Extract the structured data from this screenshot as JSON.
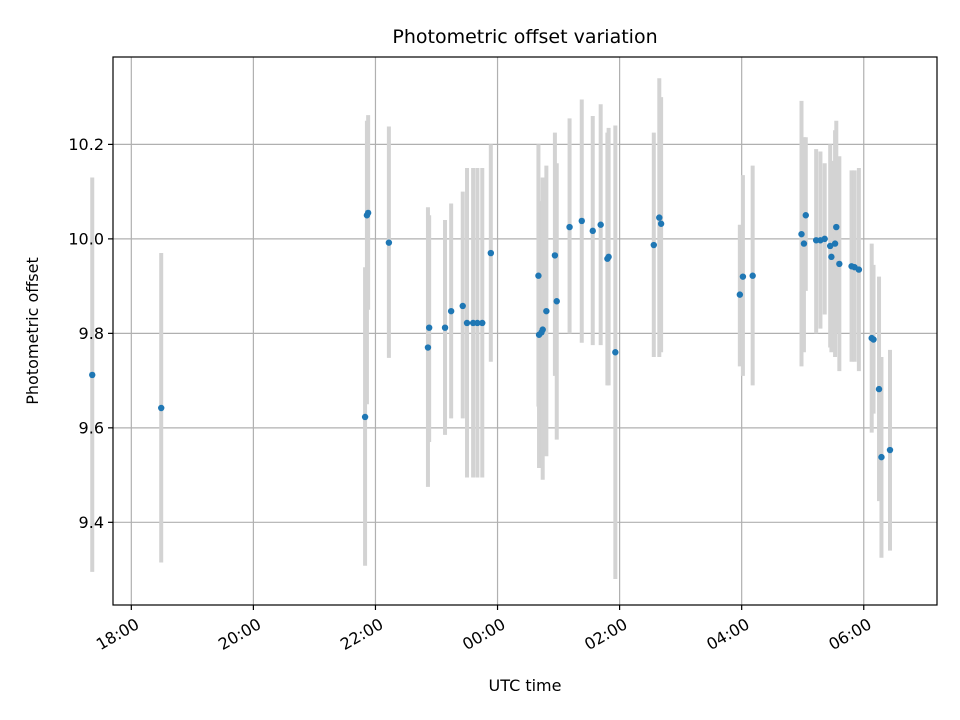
{
  "chart_data": {
    "type": "scatter",
    "title": "Photometric offset variation",
    "xlabel": "UTC time",
    "ylabel": "Photometric offset",
    "xlim": [
      -6.3,
      7.2
    ],
    "ylim": [
      9.225,
      10.385
    ],
    "grid": true,
    "x_ticks": [
      {
        "value": -6,
        "label": "18:00"
      },
      {
        "value": -4,
        "label": "20:00"
      },
      {
        "value": -2,
        "label": "22:00"
      },
      {
        "value": 0,
        "label": "00:00"
      },
      {
        "value": 2,
        "label": "02:00"
      },
      {
        "value": 4,
        "label": "04:00"
      },
      {
        "value": 6,
        "label": "06:00"
      }
    ],
    "y_ticks": [
      {
        "value": 9.4,
        "label": "9.4"
      },
      {
        "value": 9.6,
        "label": "9.6"
      },
      {
        "value": 9.8,
        "label": "9.8"
      },
      {
        "value": 10.0,
        "label": "10.0"
      },
      {
        "value": 10.2,
        "label": "10.2"
      }
    ],
    "colors": {
      "point": "#1f77b4",
      "errorbar": "#d3d3d3",
      "grid": "#b0b0b0",
      "axes": "#000000"
    },
    "points": [
      {
        "x": -6.64,
        "y": 9.712,
        "lo": 9.295,
        "hi": 10.13
      },
      {
        "x": -5.51,
        "y": 9.642,
        "lo": 9.315,
        "hi": 9.97
      },
      {
        "x": -2.17,
        "y": 9.623,
        "lo": 9.308,
        "hi": 9.94
      },
      {
        "x": -2.14,
        "y": 10.05,
        "lo": 9.65,
        "hi": 10.25
      },
      {
        "x": -2.12,
        "y": 10.055,
        "lo": 9.85,
        "hi": 10.262
      },
      {
        "x": -1.78,
        "y": 9.992,
        "lo": 9.748,
        "hi": 10.238
      },
      {
        "x": -1.14,
        "y": 9.77,
        "lo": 9.475,
        "hi": 10.067
      },
      {
        "x": -1.12,
        "y": 9.812,
        "lo": 9.57,
        "hi": 10.05
      },
      {
        "x": -0.86,
        "y": 9.812,
        "lo": 9.585,
        "hi": 10.04
      },
      {
        "x": -0.76,
        "y": 9.847,
        "lo": 9.62,
        "hi": 10.075
      },
      {
        "x": -0.57,
        "y": 9.858,
        "lo": 9.62,
        "hi": 10.1
      },
      {
        "x": -0.5,
        "y": 9.822,
        "lo": 9.495,
        "hi": 10.15
      },
      {
        "x": -0.4,
        "y": 9.822,
        "lo": 9.495,
        "hi": 10.15
      },
      {
        "x": -0.33,
        "y": 9.822,
        "lo": 9.495,
        "hi": 10.15
      },
      {
        "x": -0.25,
        "y": 9.822,
        "lo": 9.495,
        "hi": 10.15
      },
      {
        "x": -0.11,
        "y": 9.97,
        "lo": 9.74,
        "hi": 10.2
      },
      {
        "x": 0.67,
        "y": 9.922,
        "lo": 9.645,
        "hi": 10.2
      },
      {
        "x": 0.68,
        "y": 9.797,
        "lo": 9.515,
        "hi": 10.08
      },
      {
        "x": 0.72,
        "y": 9.802,
        "lo": 9.525,
        "hi": 10.08
      },
      {
        "x": 0.74,
        "y": 9.808,
        "lo": 9.49,
        "hi": 10.13
      },
      {
        "x": 0.8,
        "y": 9.847,
        "lo": 9.54,
        "hi": 10.155
      },
      {
        "x": 0.94,
        "y": 9.965,
        "lo": 9.71,
        "hi": 10.225
      },
      {
        "x": 0.97,
        "y": 9.868,
        "lo": 9.575,
        "hi": 10.16
      },
      {
        "x": 1.18,
        "y": 10.025,
        "lo": 9.8,
        "hi": 10.255
      },
      {
        "x": 1.38,
        "y": 10.038,
        "lo": 9.78,
        "hi": 10.295
      },
      {
        "x": 1.56,
        "y": 10.017,
        "lo": 9.775,
        "hi": 10.26
      },
      {
        "x": 1.69,
        "y": 10.03,
        "lo": 9.775,
        "hi": 10.285
      },
      {
        "x": 1.8,
        "y": 9.958,
        "lo": 9.69,
        "hi": 10.225
      },
      {
        "x": 1.82,
        "y": 9.962,
        "lo": 9.69,
        "hi": 10.235
      },
      {
        "x": 1.93,
        "y": 9.76,
        "lo": 9.28,
        "hi": 10.24
      },
      {
        "x": 2.56,
        "y": 9.987,
        "lo": 9.75,
        "hi": 10.225
      },
      {
        "x": 2.65,
        "y": 10.045,
        "lo": 9.75,
        "hi": 10.34
      },
      {
        "x": 2.68,
        "y": 10.032,
        "lo": 9.76,
        "hi": 10.3
      },
      {
        "x": 3.97,
        "y": 9.882,
        "lo": 9.73,
        "hi": 10.03
      },
      {
        "x": 4.02,
        "y": 9.92,
        "lo": 9.71,
        "hi": 10.135
      },
      {
        "x": 4.18,
        "y": 9.922,
        "lo": 9.69,
        "hi": 10.155
      },
      {
        "x": 4.98,
        "y": 10.01,
        "lo": 9.73,
        "hi": 10.292
      },
      {
        "x": 5.02,
        "y": 9.99,
        "lo": 9.76,
        "hi": 10.215
      },
      {
        "x": 5.05,
        "y": 10.05,
        "lo": 9.89,
        "hi": 10.215
      },
      {
        "x": 5.22,
        "y": 9.997,
        "lo": 9.8,
        "hi": 10.19
      },
      {
        "x": 5.29,
        "y": 9.997,
        "lo": 9.81,
        "hi": 10.185
      },
      {
        "x": 5.36,
        "y": 10.0,
        "lo": 9.84,
        "hi": 10.16
      },
      {
        "x": 5.45,
        "y": 9.985,
        "lo": 9.77,
        "hi": 10.2
      },
      {
        "x": 5.47,
        "y": 9.962,
        "lo": 9.76,
        "hi": 10.165
      },
      {
        "x": 5.53,
        "y": 9.99,
        "lo": 9.75,
        "hi": 10.23
      },
      {
        "x": 5.55,
        "y": 10.025,
        "lo": 9.8,
        "hi": 10.25
      },
      {
        "x": 5.6,
        "y": 9.947,
        "lo": 9.72,
        "hi": 10.175
      },
      {
        "x": 5.8,
        "y": 9.942,
        "lo": 9.74,
        "hi": 10.145
      },
      {
        "x": 5.85,
        "y": 9.94,
        "lo": 9.74,
        "hi": 10.145
      },
      {
        "x": 5.92,
        "y": 9.935,
        "lo": 9.72,
        "hi": 10.15
      },
      {
        "x": 6.13,
        "y": 9.79,
        "lo": 9.59,
        "hi": 9.99
      },
      {
        "x": 6.16,
        "y": 9.787,
        "lo": 9.63,
        "hi": 9.945
      },
      {
        "x": 6.25,
        "y": 9.682,
        "lo": 9.445,
        "hi": 9.92
      },
      {
        "x": 6.29,
        "y": 9.538,
        "lo": 9.325,
        "hi": 9.75
      },
      {
        "x": 6.43,
        "y": 9.553,
        "lo": 9.34,
        "hi": 9.765
      }
    ]
  }
}
